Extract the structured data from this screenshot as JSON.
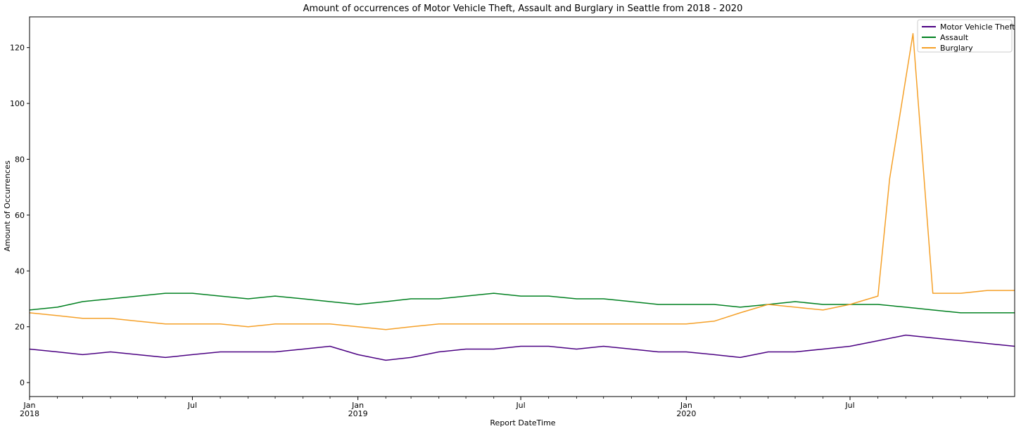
{
  "chart_data": {
    "type": "line",
    "title": "Amount of occurrences of Motor Vehicle Theft, Assault and Burglary in Seattle from 2018 - 2020",
    "xlabel": "Report DateTime",
    "ylabel": "Amount of Occurrences",
    "x_range": [
      "2018-01-01",
      "2020-12-31"
    ],
    "ylim": [
      -5,
      131
    ],
    "y_ticks": [
      0,
      20,
      40,
      60,
      80,
      100,
      120
    ],
    "x_ticks": [
      {
        "date": "2018-01-01",
        "label": "Jan",
        "sublabel": "2018"
      },
      {
        "date": "2018-07-01",
        "label": "Jul",
        "sublabel": ""
      },
      {
        "date": "2019-01-01",
        "label": "Jan",
        "sublabel": "2019"
      },
      {
        "date": "2019-07-01",
        "label": "Jul",
        "sublabel": ""
      },
      {
        "date": "2020-01-01",
        "label": "Jan",
        "sublabel": "2020"
      },
      {
        "date": "2020-07-01",
        "label": "Jul",
        "sublabel": ""
      }
    ],
    "grid": false,
    "legend_position": "top-right",
    "series": [
      {
        "name": "Motor Vehicle Theft",
        "color": "#4b0082",
        "values": [
          {
            "date": "2018-01-01",
            "value": 12
          },
          {
            "date": "2018-02-01",
            "value": 11
          },
          {
            "date": "2018-03-01",
            "value": 10
          },
          {
            "date": "2018-04-01",
            "value": 11
          },
          {
            "date": "2018-05-01",
            "value": 10
          },
          {
            "date": "2018-06-01",
            "value": 9
          },
          {
            "date": "2018-07-01",
            "value": 10
          },
          {
            "date": "2018-08-01",
            "value": 11
          },
          {
            "date": "2018-09-01",
            "value": 11
          },
          {
            "date": "2018-10-01",
            "value": 11
          },
          {
            "date": "2018-11-01",
            "value": 12
          },
          {
            "date": "2018-12-01",
            "value": 13
          },
          {
            "date": "2019-01-01",
            "value": 10
          },
          {
            "date": "2019-02-01",
            "value": 8
          },
          {
            "date": "2019-03-01",
            "value": 9
          },
          {
            "date": "2019-04-01",
            "value": 11
          },
          {
            "date": "2019-05-01",
            "value": 12
          },
          {
            "date": "2019-06-01",
            "value": 12
          },
          {
            "date": "2019-07-01",
            "value": 13
          },
          {
            "date": "2019-08-01",
            "value": 13
          },
          {
            "date": "2019-09-01",
            "value": 12
          },
          {
            "date": "2019-10-01",
            "value": 13
          },
          {
            "date": "2019-11-01",
            "value": 12
          },
          {
            "date": "2019-12-01",
            "value": 11
          },
          {
            "date": "2020-01-01",
            "value": 11
          },
          {
            "date": "2020-02-01",
            "value": 10
          },
          {
            "date": "2020-03-01",
            "value": 9
          },
          {
            "date": "2020-04-01",
            "value": 11
          },
          {
            "date": "2020-05-01",
            "value": 11
          },
          {
            "date": "2020-06-01",
            "value": 12
          },
          {
            "date": "2020-07-01",
            "value": 13
          },
          {
            "date": "2020-08-01",
            "value": 15
          },
          {
            "date": "2020-09-01",
            "value": 17
          },
          {
            "date": "2020-10-01",
            "value": 16
          },
          {
            "date": "2020-11-01",
            "value": 15
          },
          {
            "date": "2020-12-01",
            "value": 14
          },
          {
            "date": "2020-12-31",
            "value": 13
          }
        ]
      },
      {
        "name": "Assault",
        "color": "#008020",
        "values": [
          {
            "date": "2018-01-01",
            "value": 26
          },
          {
            "date": "2018-02-01",
            "value": 27
          },
          {
            "date": "2018-03-01",
            "value": 29
          },
          {
            "date": "2018-04-01",
            "value": 30
          },
          {
            "date": "2018-05-01",
            "value": 31
          },
          {
            "date": "2018-06-01",
            "value": 32
          },
          {
            "date": "2018-07-01",
            "value": 32
          },
          {
            "date": "2018-08-01",
            "value": 31
          },
          {
            "date": "2018-09-01",
            "value": 30
          },
          {
            "date": "2018-10-01",
            "value": 31
          },
          {
            "date": "2018-11-01",
            "value": 30
          },
          {
            "date": "2018-12-01",
            "value": 29
          },
          {
            "date": "2019-01-01",
            "value": 28
          },
          {
            "date": "2019-02-01",
            "value": 29
          },
          {
            "date": "2019-03-01",
            "value": 30
          },
          {
            "date": "2019-04-01",
            "value": 30
          },
          {
            "date": "2019-05-01",
            "value": 31
          },
          {
            "date": "2019-06-01",
            "value": 32
          },
          {
            "date": "2019-07-01",
            "value": 31
          },
          {
            "date": "2019-08-01",
            "value": 31
          },
          {
            "date": "2019-09-01",
            "value": 30
          },
          {
            "date": "2019-10-01",
            "value": 30
          },
          {
            "date": "2019-11-01",
            "value": 29
          },
          {
            "date": "2019-12-01",
            "value": 28
          },
          {
            "date": "2020-01-01",
            "value": 28
          },
          {
            "date": "2020-02-01",
            "value": 28
          },
          {
            "date": "2020-03-01",
            "value": 27
          },
          {
            "date": "2020-04-01",
            "value": 28
          },
          {
            "date": "2020-05-01",
            "value": 29
          },
          {
            "date": "2020-06-01",
            "value": 28
          },
          {
            "date": "2020-07-01",
            "value": 28
          },
          {
            "date": "2020-08-01",
            "value": 28
          },
          {
            "date": "2020-09-01",
            "value": 27
          },
          {
            "date": "2020-10-01",
            "value": 26
          },
          {
            "date": "2020-11-01",
            "value": 25
          },
          {
            "date": "2020-12-01",
            "value": 25
          },
          {
            "date": "2020-12-31",
            "value": 25
          }
        ]
      },
      {
        "name": "Burglary",
        "color": "#f5a028",
        "values": [
          {
            "date": "2018-01-01",
            "value": 25
          },
          {
            "date": "2018-02-01",
            "value": 24
          },
          {
            "date": "2018-03-01",
            "value": 23
          },
          {
            "date": "2018-04-01",
            "value": 23
          },
          {
            "date": "2018-05-01",
            "value": 22
          },
          {
            "date": "2018-06-01",
            "value": 21
          },
          {
            "date": "2018-07-01",
            "value": 21
          },
          {
            "date": "2018-08-01",
            "value": 21
          },
          {
            "date": "2018-09-01",
            "value": 20
          },
          {
            "date": "2018-10-01",
            "value": 21
          },
          {
            "date": "2018-11-01",
            "value": 21
          },
          {
            "date": "2018-12-01",
            "value": 21
          },
          {
            "date": "2019-01-01",
            "value": 20
          },
          {
            "date": "2019-02-01",
            "value": 19
          },
          {
            "date": "2019-03-01",
            "value": 20
          },
          {
            "date": "2019-04-01",
            "value": 21
          },
          {
            "date": "2019-05-01",
            "value": 21
          },
          {
            "date": "2019-06-01",
            "value": 21
          },
          {
            "date": "2019-07-01",
            "value": 21
          },
          {
            "date": "2019-08-01",
            "value": 21
          },
          {
            "date": "2019-09-01",
            "value": 21
          },
          {
            "date": "2019-10-01",
            "value": 21
          },
          {
            "date": "2019-11-01",
            "value": 21
          },
          {
            "date": "2019-12-01",
            "value": 21
          },
          {
            "date": "2020-01-01",
            "value": 21
          },
          {
            "date": "2020-02-01",
            "value": 22
          },
          {
            "date": "2020-03-01",
            "value": 25
          },
          {
            "date": "2020-04-01",
            "value": 28
          },
          {
            "date": "2020-05-01",
            "value": 27
          },
          {
            "date": "2020-06-01",
            "value": 26
          },
          {
            "date": "2020-07-01",
            "value": 28
          },
          {
            "date": "2020-08-01",
            "value": 31
          },
          {
            "date": "2020-08-14",
            "value": 73
          },
          {
            "date": "2020-09-09",
            "value": 125
          },
          {
            "date": "2020-10-01",
            "value": 32
          },
          {
            "date": "2020-11-01",
            "value": 32
          },
          {
            "date": "2020-12-01",
            "value": 33
          },
          {
            "date": "2020-12-31",
            "value": 33
          }
        ]
      }
    ]
  }
}
